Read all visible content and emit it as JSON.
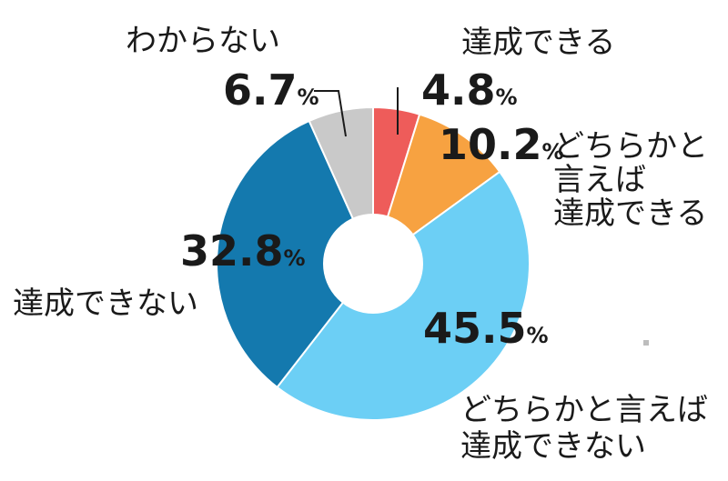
{
  "chart_data": {
    "type": "pie",
    "donut": true,
    "start_angle_deg": 0,
    "direction": "clockwise",
    "legend": "none",
    "unit": "%",
    "slices": [
      {
        "category": [
          "達成できる"
        ],
        "value": 4.8,
        "value_text": "4.8",
        "color": "#ee5c5a"
      },
      {
        "category": [
          "どちらかと",
          "言えば",
          "達成できる"
        ],
        "value": 10.2,
        "value_text": "10.2",
        "color": "#f7a241"
      },
      {
        "category": [
          "どちらかと言えば",
          "達成できない"
        ],
        "value": 45.5,
        "value_text": "45.5",
        "color": "#6ccff5"
      },
      {
        "category": [
          "達成できない"
        ],
        "value": 32.8,
        "value_text": "32.8",
        "color": "#1479ae"
      },
      {
        "category": [
          "わからない"
        ],
        "value": 6.7,
        "value_text": "6.7",
        "color": "#c9c9c9"
      }
    ]
  }
}
